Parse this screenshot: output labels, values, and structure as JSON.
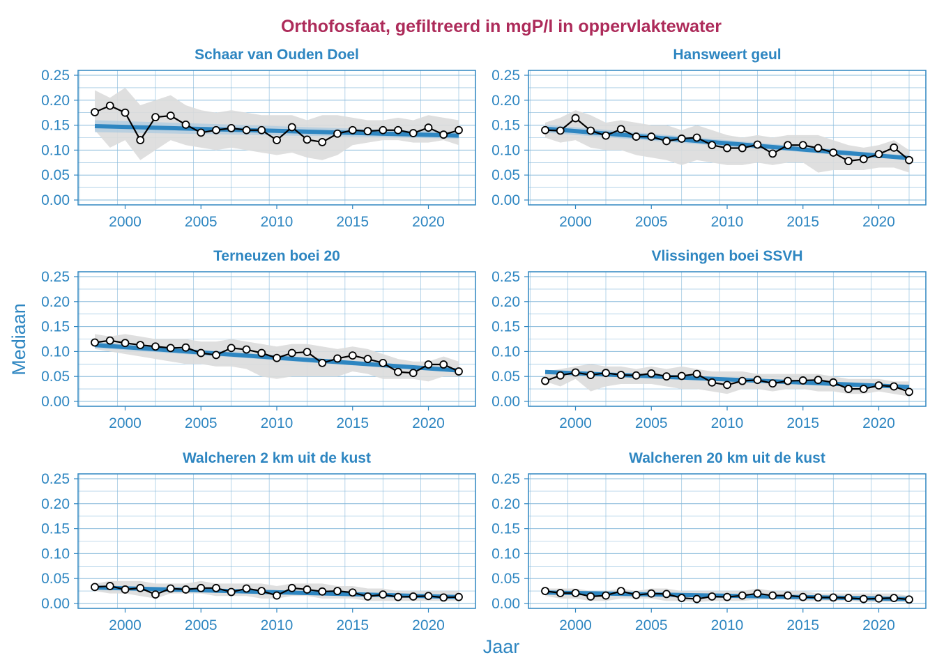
{
  "colors": {
    "title": "#AD2B5A",
    "axis": "#2E86C1",
    "grid": "#85B8DA",
    "ribbon": "#DCDCDC",
    "trend": "#2E86C1",
    "trend_ci": "#A9C9E0",
    "line": "#000000"
  },
  "chart_data": {
    "type": "line",
    "title": "Orthofosfaat, gefiltreerd in mgP/l in oppervlaktewater",
    "xlabel": "Jaar",
    "ylabel": "Mediaan",
    "ylim": [
      0,
      0.25
    ],
    "xlim": [
      1998,
      2022
    ],
    "grid": true,
    "layout": "3 rows x 2 columns, shared axes",
    "y_ticks": [
      "0.00",
      "0.05",
      "0.10",
      "0.15",
      "0.20",
      "0.25"
    ],
    "x_ticks": [
      "2000",
      "2005",
      "2010",
      "2015",
      "2020"
    ],
    "x": [
      1998,
      1999,
      2000,
      2001,
      2002,
      2003,
      2004,
      2005,
      2006,
      2007,
      2008,
      2009,
      2010,
      2011,
      2012,
      2013,
      2014,
      2015,
      2016,
      2017,
      2018,
      2019,
      2020,
      2021,
      2022
    ],
    "panels": [
      {
        "name": "Schaar van Ouden Doel",
        "values": [
          0.176,
          0.189,
          0.175,
          0.12,
          0.166,
          0.169,
          0.151,
          0.135,
          0.14,
          0.144,
          0.14,
          0.14,
          0.12,
          0.146,
          0.121,
          0.116,
          0.133,
          0.14,
          0.138,
          0.14,
          0.14,
          0.134,
          0.145,
          0.131,
          0.14
        ],
        "band_low": [
          0.14,
          0.105,
          0.12,
          0.08,
          0.1,
          0.12,
          0.11,
          0.105,
          0.1,
          0.105,
          0.1,
          0.095,
          0.09,
          0.095,
          0.085,
          0.08,
          0.09,
          0.11,
          0.115,
          0.12,
          0.12,
          0.115,
          0.115,
          0.12,
          0.11
        ],
        "band_high": [
          0.22,
          0.205,
          0.225,
          0.19,
          0.2,
          0.21,
          0.19,
          0.18,
          0.175,
          0.18,
          0.175,
          0.17,
          0.17,
          0.17,
          0.16,
          0.17,
          0.17,
          0.165,
          0.16,
          0.16,
          0.165,
          0.16,
          0.17,
          0.165,
          0.16
        ],
        "trend": [
          0.148,
          0.129
        ],
        "trend_ci": [
          0.012,
          0.006
        ]
      },
      {
        "name": "Hansweert geul",
        "values": [
          0.14,
          0.139,
          0.164,
          0.139,
          0.129,
          0.142,
          0.127,
          0.127,
          0.118,
          0.123,
          0.125,
          0.11,
          0.104,
          0.104,
          0.111,
          0.093,
          0.11,
          0.11,
          0.104,
          0.095,
          0.078,
          0.082,
          0.092,
          0.105,
          0.08
        ],
        "band_low": [
          0.125,
          0.115,
          0.12,
          0.105,
          0.1,
          0.1,
          0.09,
          0.085,
          0.08,
          0.07,
          0.08,
          0.075,
          0.07,
          0.07,
          0.075,
          0.07,
          0.075,
          0.075,
          0.055,
          0.06,
          0.06,
          0.06,
          0.065,
          0.065,
          0.055
        ],
        "band_high": [
          0.155,
          0.165,
          0.18,
          0.17,
          0.155,
          0.16,
          0.155,
          0.15,
          0.15,
          0.14,
          0.15,
          0.14,
          0.13,
          0.125,
          0.13,
          0.125,
          0.13,
          0.13,
          0.13,
          0.12,
          0.11,
          0.105,
          0.11,
          0.12,
          0.1
        ],
        "trend": [
          0.143,
          0.084
        ],
        "trend_ci": [
          0.008,
          0.004
        ]
      },
      {
        "name": "Terneuzen boei 20",
        "values": [
          0.118,
          0.122,
          0.117,
          0.113,
          0.11,
          0.107,
          0.108,
          0.097,
          0.093,
          0.107,
          0.104,
          0.097,
          0.087,
          0.097,
          0.099,
          0.077,
          0.086,
          0.092,
          0.085,
          0.077,
          0.059,
          0.057,
          0.074,
          0.074,
          0.06
        ],
        "band_low": [
          0.105,
          0.1,
          0.095,
          0.09,
          0.085,
          0.08,
          0.075,
          0.075,
          0.07,
          0.07,
          0.065,
          0.05,
          0.045,
          0.05,
          0.05,
          0.05,
          0.05,
          0.06,
          0.055,
          0.045,
          0.045,
          0.045,
          0.04,
          0.05,
          0.05
        ],
        "band_high": [
          0.135,
          0.13,
          0.135,
          0.13,
          0.125,
          0.125,
          0.125,
          0.12,
          0.12,
          0.125,
          0.12,
          0.115,
          0.11,
          0.115,
          0.115,
          0.11,
          0.105,
          0.11,
          0.105,
          0.095,
          0.085,
          0.08,
          0.08,
          0.09,
          0.08
        ],
        "trend": [
          0.113,
          0.062
        ],
        "trend_ci": [
          0.006,
          0.004
        ]
      },
      {
        "name": "Vlissingen boei SSVH",
        "values": [
          0.041,
          0.052,
          0.058,
          0.053,
          0.057,
          0.053,
          0.052,
          0.056,
          0.05,
          0.051,
          0.055,
          0.038,
          0.033,
          0.041,
          0.043,
          0.036,
          0.041,
          0.042,
          0.043,
          0.038,
          0.025,
          0.025,
          0.032,
          0.03,
          0.019
        ],
        "band_low": [
          0.04,
          0.03,
          0.045,
          0.02,
          0.03,
          0.035,
          0.035,
          0.035,
          0.03,
          0.025,
          0.025,
          0.02,
          0.015,
          0.025,
          0.025,
          0.02,
          0.025,
          0.025,
          0.02,
          0.02,
          0.015,
          0.015,
          0.02,
          0.015,
          0.01
        ],
        "band_high": [
          0.06,
          0.065,
          0.07,
          0.075,
          0.07,
          0.07,
          0.065,
          0.07,
          0.065,
          0.07,
          0.065,
          0.06,
          0.06,
          0.06,
          0.055,
          0.055,
          0.055,
          0.055,
          0.055,
          0.05,
          0.045,
          0.045,
          0.045,
          0.04,
          0.04
        ],
        "trend": [
          0.059,
          0.029
        ],
        "trend_ci": [
          0.004,
          0.003
        ]
      },
      {
        "name": "Walcheren 2 km uit de kust",
        "values": [
          0.033,
          0.035,
          0.028,
          0.031,
          0.018,
          0.03,
          0.028,
          0.031,
          0.031,
          0.023,
          0.03,
          0.025,
          0.016,
          0.031,
          0.028,
          0.024,
          0.025,
          0.022,
          0.014,
          0.018,
          0.013,
          0.014,
          0.015,
          0.012,
          0.013
        ],
        "band_low": [
          0.025,
          0.02,
          0.02,
          0.015,
          0.01,
          0.02,
          0.02,
          0.02,
          0.015,
          0.015,
          0.015,
          0.01,
          0.01,
          0.015,
          0.015,
          0.01,
          0.01,
          0.01,
          0.005,
          0.005,
          0.005,
          0.005,
          0.005,
          0.005,
          0.005
        ],
        "band_high": [
          0.04,
          0.045,
          0.045,
          0.045,
          0.04,
          0.04,
          0.04,
          0.045,
          0.04,
          0.04,
          0.04,
          0.04,
          0.035,
          0.04,
          0.04,
          0.04,
          0.035,
          0.035,
          0.03,
          0.03,
          0.025,
          0.025,
          0.025,
          0.025,
          0.025
        ],
        "trend": [
          0.032,
          0.013
        ],
        "trend_ci": [
          0.003,
          0.002
        ]
      },
      {
        "name": "Walcheren 20 km uit de kust",
        "values": [
          0.025,
          0.021,
          0.021,
          0.014,
          0.016,
          0.025,
          0.017,
          0.02,
          0.019,
          0.011,
          0.009,
          0.014,
          0.013,
          0.016,
          0.02,
          0.016,
          0.016,
          0.013,
          0.012,
          0.012,
          0.011,
          0.009,
          0.01,
          0.011,
          0.008
        ],
        "band_low": [
          0.015,
          0.01,
          0.01,
          0.005,
          0.005,
          0.01,
          0.01,
          0.01,
          0.005,
          0.005,
          0.003,
          0.005,
          0.005,
          0.005,
          0.008,
          0.008,
          0.008,
          0.005,
          0.005,
          0.005,
          0.005,
          0.003,
          0.003,
          0.003,
          0.003
        ],
        "band_high": [
          0.03,
          0.03,
          0.03,
          0.025,
          0.025,
          0.03,
          0.025,
          0.03,
          0.03,
          0.025,
          0.025,
          0.025,
          0.025,
          0.025,
          0.03,
          0.025,
          0.025,
          0.025,
          0.02,
          0.02,
          0.02,
          0.02,
          0.02,
          0.02,
          0.015
        ],
        "trend": [
          0.022,
          0.009
        ],
        "trend_ci": [
          0.003,
          0.002
        ]
      }
    ]
  }
}
